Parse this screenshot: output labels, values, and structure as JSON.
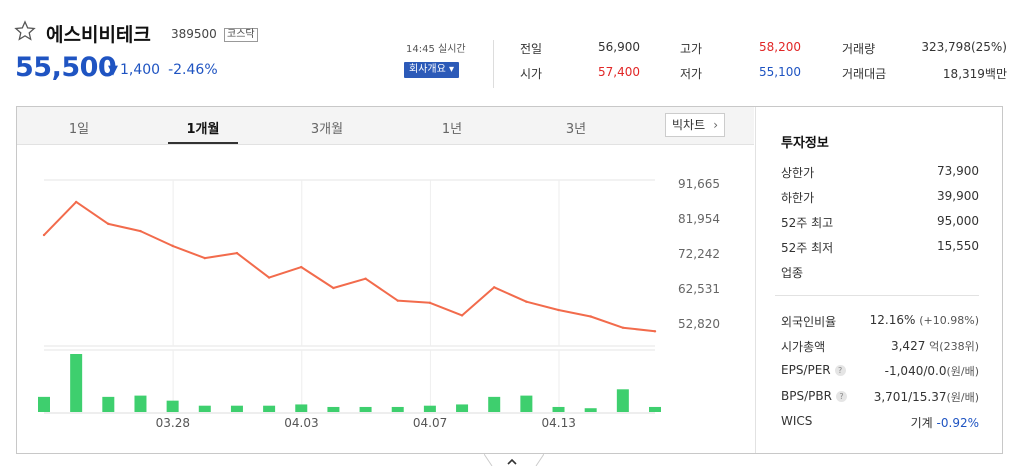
{
  "header": {
    "name": "에스비비테크",
    "code": "389500",
    "market": "코스닥",
    "price": "55,500",
    "change_abs": "1,400",
    "change_pct": "-2.46%",
    "time": "14:45 실시간",
    "overview_label": "회사개요 ▾"
  },
  "quote": {
    "prev_label": "전일",
    "prev": "56,900",
    "open_label": "시가",
    "open": "57,400",
    "high_label": "고가",
    "high": "58,200",
    "low_label": "저가",
    "low": "55,100",
    "volume_label": "거래량",
    "volume": "323,798(25%)",
    "amount_label": "거래대금",
    "amount": "18,319백만"
  },
  "tabs": [
    "1일",
    "1개월",
    "3개월",
    "1년",
    "3년"
  ],
  "active_tab": "1개월",
  "big_chart_label": "빅차트",
  "chart_data": {
    "type": "line",
    "title": "",
    "y_ticks": [
      "91,665",
      "81,954",
      "72,242",
      "62,531",
      "52,820"
    ],
    "y_tick_values": [
      91665,
      81954,
      72242,
      62531,
      52820
    ],
    "x_labels": [
      "03.28",
      "04.03",
      "04.07",
      "04.13"
    ],
    "x_label_index": [
      4,
      8,
      12,
      16
    ],
    "price_series": [
      77500,
      86700,
      80600,
      78600,
      74500,
      71100,
      72500,
      65700,
      68600,
      62800,
      65400,
      59300,
      58700,
      55200,
      63000,
      59000,
      56700,
      54900,
      51800,
      50800
    ],
    "volume_series": [
      12,
      46,
      12,
      13,
      9,
      5,
      5,
      5,
      6,
      4,
      4,
      4,
      5,
      6,
      12,
      13,
      4,
      3,
      18,
      4
    ],
    "line_color": "#f26b4c",
    "bar_color": "#3ecf6e"
  },
  "invest": {
    "title": "투자정보",
    "upper_label": "상한가",
    "upper": "73,900",
    "lower_label": "하한가",
    "lower": "39,900",
    "w52high_label": "52주 최고",
    "w52high": "95,000",
    "w52low_label": "52주 최저",
    "w52low": "15,550",
    "industry_label": "업종",
    "foreign_label": "외국인비율",
    "foreign": "12.16%",
    "foreign_chg": "(+10.98%)",
    "mcap_label": "시가총액",
    "mcap": "3,427",
    "mcap_unit": "억(238위)",
    "eps_label": "EPS/PER",
    "eps": "-1,040/0.0",
    "eps_unit": "(원/배)",
    "bps_label": "BPS/PBR",
    "bps": "3,701/15.37",
    "bps_unit": "(원/배)",
    "wics_label": "WICS",
    "wics": "기계",
    "wics_chg": "-0.92%"
  },
  "colors": {
    "up": "#e12727",
    "down": "#1f54c2",
    "accent": "#2c5ab8"
  }
}
